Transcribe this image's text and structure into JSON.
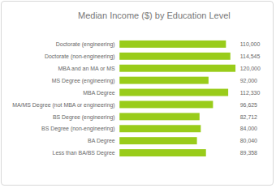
{
  "chart_data": {
    "type": "bar",
    "title": "Median Income ($) by Education Level",
    "orientation": "horizontal",
    "categories": [
      "Doctorate (engineering)",
      "Doctorate (non-engineering)",
      "MBA and an MA or MS",
      "MS Degree (engineering)",
      "MBA Degree",
      "MA/MS Degree (not MBA or engineering)",
      "BS Degree (engineering)",
      "BS Degree (non-engineering)",
      "BA Degree",
      "Less than BA/BS Degree"
    ],
    "values": [
      110000,
      114545,
      120000,
      92000,
      112330,
      96625,
      82712,
      84000,
      80040,
      89358
    ],
    "value_labels": [
      "110,000",
      "114,545",
      "120,000",
      "92,000",
      "112,330",
      "96,625",
      "82,712",
      "84,000",
      "80,040",
      "89,358"
    ],
    "data_labels": true,
    "color": "#99cc1a",
    "xlim": [
      0,
      120000
    ],
    "grid": false,
    "tick_labels": "y"
  }
}
